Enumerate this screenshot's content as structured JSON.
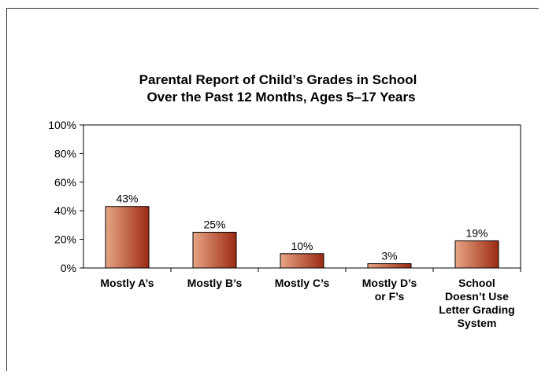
{
  "chart_data": {
    "type": "bar",
    "title_lines": [
      "Parental Report of Child’s Grades in School",
      "Over the Past 12 Months, Ages 5–17 Years"
    ],
    "categories": [
      [
        "Mostly A’s"
      ],
      [
        "Mostly B’s"
      ],
      [
        "Mostly C’s"
      ],
      [
        "Mostly D’s",
        "or F’s"
      ],
      [
        "School",
        "Doesn’t Use",
        "Letter Grading",
        "System"
      ]
    ],
    "values": [
      43,
      25,
      10,
      3,
      19
    ],
    "data_labels": [
      "43%",
      "25%",
      "10%",
      "3%",
      "19%"
    ],
    "ylim": [
      0,
      100
    ],
    "yticks": [
      0,
      20,
      40,
      60,
      80,
      100
    ],
    "ytick_labels": [
      "0%",
      "20%",
      "40%",
      "60%",
      "80%",
      "100%"
    ],
    "xlabel": "",
    "ylabel": "",
    "grid": false,
    "bar_color_light": "#e7a585",
    "bar_color_dark": "#9c2a12"
  }
}
